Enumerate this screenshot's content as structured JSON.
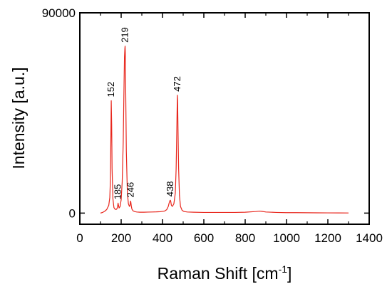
{
  "chart_data": {
    "type": "line",
    "xlabel": "Raman Shift [cm",
    "xlabel_superscript": "-1",
    "xlabel_suffix": "]",
    "ylabel": "Intensity [a.u.]",
    "xlim": [
      0,
      1400
    ],
    "ylim": [
      -5000,
      90000
    ],
    "x_ticks": [
      0,
      200,
      400,
      600,
      800,
      1000,
      1200,
      1400
    ],
    "x_tick_labels": [
      "0",
      "200",
      "400",
      "600",
      "800",
      "1000",
      "1200",
      "1400"
    ],
    "y_ticks": [
      0,
      90000
    ],
    "y_tick_labels": [
      "0",
      "90000"
    ],
    "grid": false,
    "legend": "none",
    "line_color": "#e8261c",
    "series": [
      {
        "x": [
          100,
          110,
          120,
          130,
          140,
          145,
          148,
          150,
          152,
          154,
          156,
          160,
          165,
          170,
          175,
          180,
          183,
          185,
          187,
          190,
          195,
          200,
          205,
          210,
          213,
          216,
          218,
          219,
          220,
          222,
          225,
          230,
          235,
          240,
          243,
          245,
          246,
          247,
          249,
          252,
          258,
          265,
          275,
          290,
          310,
          330,
          350,
          370,
          390,
          410,
          420,
          428,
          432,
          436,
          438,
          440,
          443,
          448,
          455,
          462,
          466,
          469,
          471,
          472,
          473,
          475,
          478,
          482,
          487,
          495,
          505,
          520,
          550,
          600,
          650,
          700,
          750,
          800,
          850,
          870,
          880,
          900,
          950,
          1000,
          1050,
          1100,
          1150,
          1200,
          1250,
          1300
        ],
        "y": [
          0,
          300,
          800,
          1600,
          3500,
          7000,
          15000,
          32000,
          50500,
          40000,
          20000,
          6500,
          2500,
          1800,
          1600,
          2000,
          3200,
          4500,
          3500,
          2300,
          3000,
          6000,
          14000,
          32000,
          52000,
          70000,
          74000,
          75000,
          72000,
          55000,
          28000,
          9000,
          4200,
          3000,
          3600,
          5200,
          5400,
          4800,
          3200,
          1800,
          1000,
          700,
          500,
          400,
          400,
          450,
          500,
          550,
          650,
          900,
          1500,
          3000,
          4500,
          5600,
          5800,
          5200,
          3500,
          3000,
          4200,
          9000,
          20000,
          36000,
          48000,
          53000,
          51000,
          38000,
          20000,
          8000,
          3000,
          1200,
          700,
          500,
          400,
          300,
          300,
          300,
          300,
          400,
          700,
          900,
          800,
          500,
          300,
          200,
          200,
          150,
          120,
          100,
          80,
          50
        ]
      }
    ],
    "annotations": [
      {
        "text": "152",
        "x": 152,
        "y": 50500
      },
      {
        "text": "185",
        "x": 185,
        "y": 4500
      },
      {
        "text": "219",
        "x": 219,
        "y": 75000
      },
      {
        "text": "246",
        "x": 246,
        "y": 5400
      },
      {
        "text": "438",
        "x": 438,
        "y": 5800
      },
      {
        "text": "472",
        "x": 472,
        "y": 53000
      }
    ]
  }
}
